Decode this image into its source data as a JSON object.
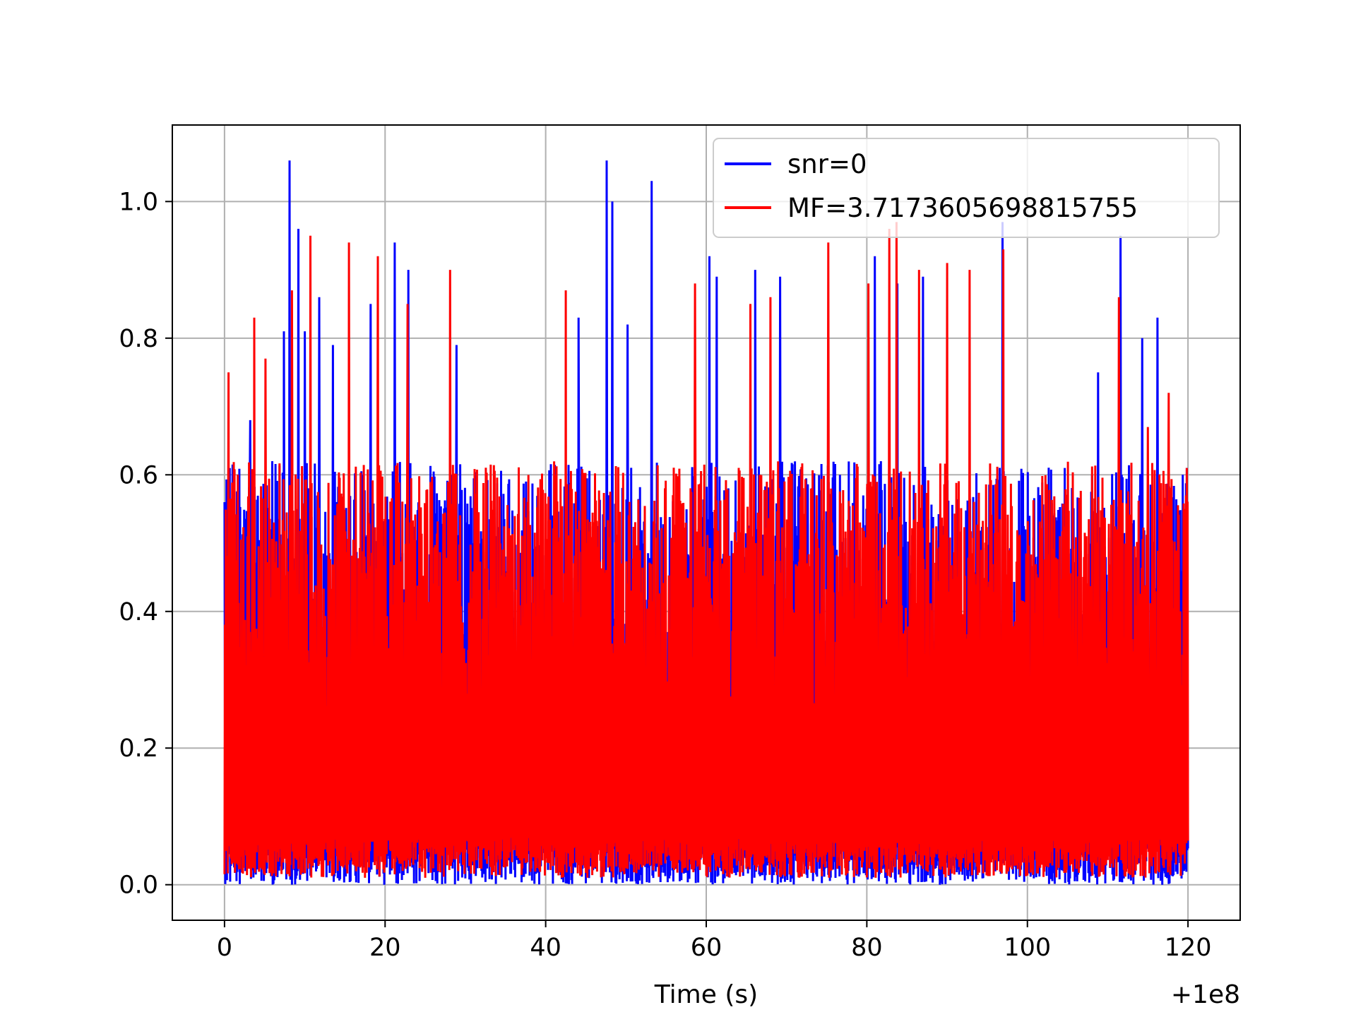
{
  "chart_data": {
    "type": "line",
    "title": "",
    "xlabel": "Time (s)",
    "ylabel": "",
    "x_offset_label": "+1e8",
    "xlim": [
      -6.5,
      126.5
    ],
    "ylim": [
      -0.052,
      1.112
    ],
    "x_ticks": [
      0,
      20,
      40,
      60,
      80,
      100,
      120
    ],
    "x_tick_labels": [
      "0",
      "20",
      "40",
      "60",
      "80",
      "100",
      "120"
    ],
    "y_ticks": [
      0.0,
      0.2,
      0.4,
      0.6,
      0.8,
      1.0
    ],
    "y_tick_labels": [
      "0.0",
      "0.2",
      "0.4",
      "0.6",
      "0.8",
      "1.0"
    ],
    "grid": true,
    "legend_position": "upper right",
    "x_range": [
      0,
      120
    ],
    "series": [
      {
        "name": "snr=0",
        "color": "#0000ff",
        "peaks": [
          [
            0.0,
            0.56
          ],
          [
            1.0,
            0.615
          ],
          [
            3.2,
            0.68
          ],
          [
            7.4,
            0.81
          ],
          [
            8.1,
            1.06
          ],
          [
            9.2,
            0.96
          ],
          [
            10.0,
            0.81
          ],
          [
            11.8,
            0.86
          ],
          [
            13.5,
            0.79
          ],
          [
            18.2,
            0.85
          ],
          [
            21.2,
            0.94
          ],
          [
            22.9,
            0.9
          ],
          [
            28.9,
            0.79
          ],
          [
            44.1,
            0.83
          ],
          [
            47.6,
            1.06
          ],
          [
            48.3,
            1.0
          ],
          [
            50.2,
            0.82
          ],
          [
            53.2,
            1.03
          ],
          [
            60.4,
            0.92
          ],
          [
            61.3,
            0.89
          ],
          [
            66.1,
            0.9
          ],
          [
            69.2,
            0.89
          ],
          [
            81.0,
            0.92
          ],
          [
            83.8,
            0.88
          ],
          [
            87.0,
            0.89
          ],
          [
            96.9,
            0.97
          ],
          [
            108.8,
            0.75
          ],
          [
            111.6,
            0.95
          ],
          [
            114.3,
            0.8
          ],
          [
            116.2,
            0.83
          ]
        ],
        "floor": 0.0,
        "typical_max": 0.62
      },
      {
        "name": "MF=3.7173605698815755",
        "color": "#ff0000",
        "peaks": [
          [
            0.5,
            0.75
          ],
          [
            3.7,
            0.83
          ],
          [
            5.1,
            0.77
          ],
          [
            8.4,
            0.87
          ],
          [
            10.7,
            0.95
          ],
          [
            15.5,
            0.94
          ],
          [
            19.1,
            0.92
          ],
          [
            22.8,
            0.85
          ],
          [
            28.1,
            0.9
          ],
          [
            42.5,
            0.87
          ],
          [
            58.6,
            0.88
          ],
          [
            65.5,
            0.85
          ],
          [
            68.0,
            0.86
          ],
          [
            75.2,
            0.94
          ],
          [
            80.2,
            0.88
          ],
          [
            82.8,
            0.96
          ],
          [
            83.7,
            0.97
          ],
          [
            86.5,
            0.9
          ],
          [
            90.0,
            0.91
          ],
          [
            92.8,
            0.9
          ],
          [
            97.0,
            0.93
          ],
          [
            111.4,
            0.86
          ],
          [
            115.0,
            0.67
          ],
          [
            117.6,
            0.72
          ]
        ],
        "floor": 0.01,
        "typical_max": 0.62
      }
    ]
  }
}
